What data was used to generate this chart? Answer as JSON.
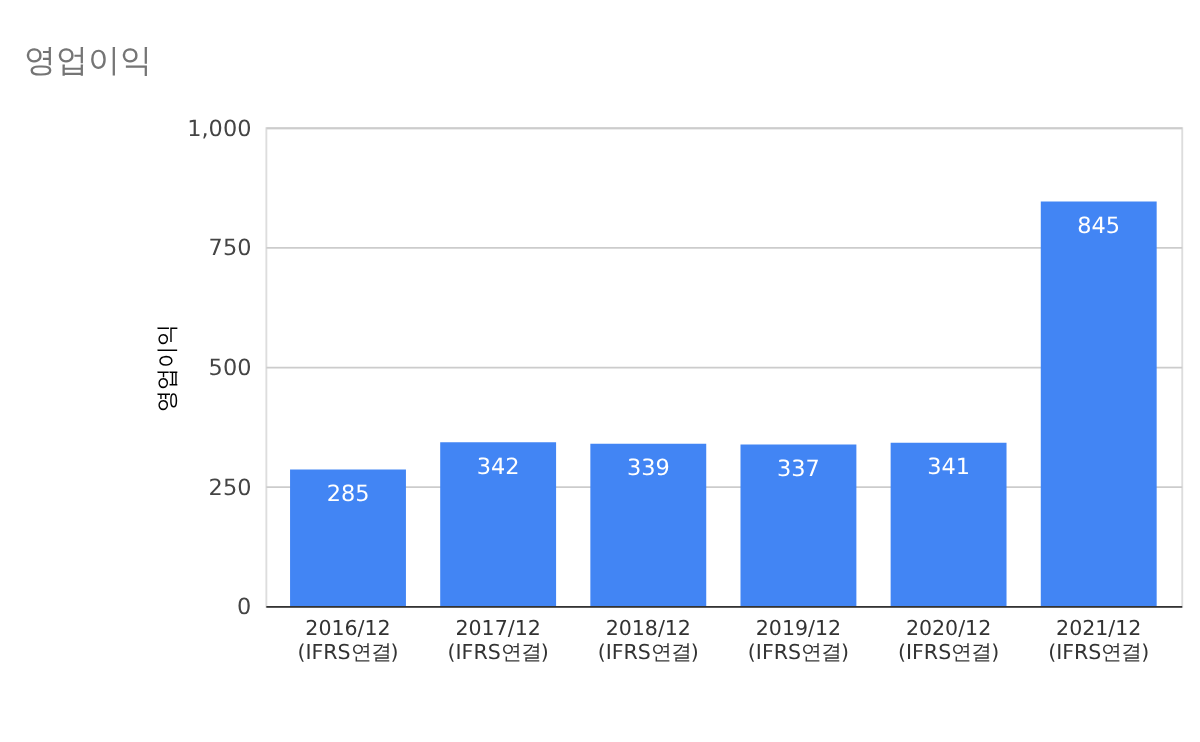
{
  "chart_data": {
    "type": "bar",
    "title": "영업이익",
    "ylabel": "영업이익",
    "categories": [
      "2016/12 (IFRS연결)",
      "2017/12 (IFRS연결)",
      "2018/12 (IFRS연결)",
      "2019/12 (IFRS연결)",
      "2020/12 (IFRS연결)",
      "2021/12 (IFRS연결)"
    ],
    "values": [
      285,
      342,
      339,
      337,
      341,
      845
    ],
    "color": "#4285f4",
    "ylim": [
      0,
      1000
    ],
    "yticks": [
      0,
      250,
      500,
      750,
      {
        "value": 1000,
        "label": "1,000"
      }
    ],
    "grid": "y",
    "data_labels": true
  }
}
